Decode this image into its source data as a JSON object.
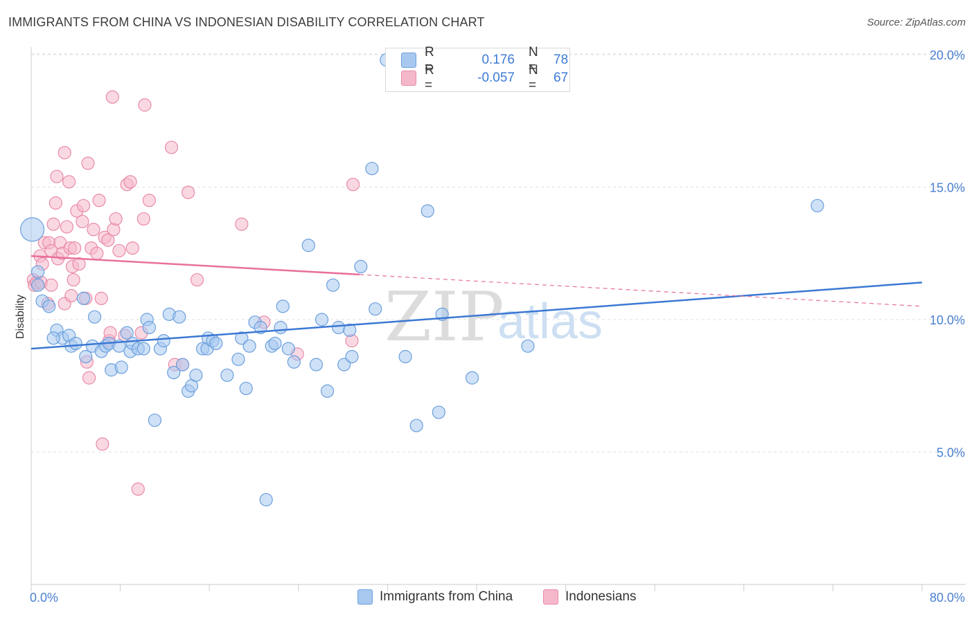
{
  "title": "IMMIGRANTS FROM CHINA VS INDONESIAN DISABILITY CORRELATION CHART",
  "source": "Source: ZipAtlas.com",
  "watermark": {
    "zip": "ZIP",
    "atlas": "atlas"
  },
  "legend": {
    "r_label": "R =",
    "n_label": "N =",
    "rows": [
      {
        "r": "0.176",
        "n": "78",
        "color": "#a8c8f0"
      },
      {
        "r": "-0.057",
        "n": "67",
        "color": "#f5b8cb"
      }
    ]
  },
  "colors": {
    "blue_fill": "#a8c8f0",
    "blue_stroke": "#6a9fdc",
    "blue_line": "#3b78d4",
    "pink_fill": "#f5b8cb",
    "pink_stroke": "#e88aa8",
    "pink_line": "#e8709a",
    "grid": "#e0e0e0",
    "tick_label": "#4a7fd0"
  },
  "chart_data": {
    "type": "scatter",
    "title": "IMMIGRANTS FROM CHINA VS INDONESIAN DISABILITY CORRELATION CHART",
    "xlabel": "",
    "ylabel": "Disability",
    "xlim": [
      0,
      80
    ],
    "ylim": [
      0,
      21.5
    ],
    "x_tick_labels": [
      "0.0%",
      "80.0%"
    ],
    "y_ticks": [
      5,
      10,
      15,
      20
    ],
    "y_tick_labels": [
      "5.0%",
      "10.0%",
      "15.0%",
      "20.0%"
    ],
    "grid": true,
    "legend_position": "bottom-center",
    "series": [
      {
        "name": "Immigrants from China",
        "R": 0.176,
        "N": 78,
        "trend": {
          "x": [
            0,
            80
          ],
          "y": [
            8.9,
            11.4
          ]
        },
        "points": [
          [
            0.1,
            13.4
          ],
          [
            0.6,
            11.8
          ],
          [
            0.6,
            11.3
          ],
          [
            1.0,
            10.7
          ],
          [
            1.6,
            10.5
          ],
          [
            2.3,
            9.6
          ],
          [
            2.8,
            9.3
          ],
          [
            3.4,
            9.4
          ],
          [
            3.6,
            9.0
          ],
          [
            4.0,
            9.1
          ],
          [
            4.7,
            10.8
          ],
          [
            4.9,
            8.6
          ],
          [
            5.7,
            10.1
          ],
          [
            5.5,
            9.0
          ],
          [
            6.3,
            8.8
          ],
          [
            6.7,
            9.0
          ],
          [
            7.0,
            9.1
          ],
          [
            7.2,
            8.1
          ],
          [
            7.9,
            9.0
          ],
          [
            8.1,
            8.2
          ],
          [
            8.6,
            9.5
          ],
          [
            8.9,
            8.8
          ],
          [
            9.1,
            9.1
          ],
          [
            9.6,
            8.9
          ],
          [
            10.1,
            8.9
          ],
          [
            10.4,
            10.0
          ],
          [
            10.6,
            9.7
          ],
          [
            11.1,
            6.2
          ],
          [
            11.6,
            8.9
          ],
          [
            11.9,
            9.2
          ],
          [
            12.4,
            10.2
          ],
          [
            12.8,
            8.0
          ],
          [
            13.3,
            10.1
          ],
          [
            13.6,
            8.3
          ],
          [
            14.1,
            7.3
          ],
          [
            14.4,
            7.5
          ],
          [
            14.8,
            7.9
          ],
          [
            15.4,
            8.9
          ],
          [
            15.8,
            8.9
          ],
          [
            15.9,
            9.3
          ],
          [
            16.3,
            9.2
          ],
          [
            16.6,
            9.1
          ],
          [
            17.6,
            7.9
          ],
          [
            18.6,
            8.5
          ],
          [
            18.9,
            9.3
          ],
          [
            19.3,
            7.4
          ],
          [
            19.6,
            9.0
          ],
          [
            20.1,
            9.9
          ],
          [
            20.6,
            9.7
          ],
          [
            21.6,
            9.0
          ],
          [
            21.9,
            9.1
          ],
          [
            22.4,
            9.7
          ],
          [
            22.6,
            10.5
          ],
          [
            23.1,
            8.9
          ],
          [
            23.6,
            8.4
          ],
          [
            24.9,
            12.8
          ],
          [
            25.6,
            8.3
          ],
          [
            26.1,
            10.0
          ],
          [
            26.6,
            7.3
          ],
          [
            27.1,
            11.3
          ],
          [
            27.6,
            9.7
          ],
          [
            28.1,
            8.3
          ],
          [
            28.6,
            9.6
          ],
          [
            28.8,
            8.6
          ],
          [
            29.6,
            12.0
          ],
          [
            30.6,
            15.7
          ],
          [
            30.9,
            10.4
          ],
          [
            31.9,
            19.8
          ],
          [
            33.6,
            8.6
          ],
          [
            34.6,
            6.0
          ],
          [
            35.6,
            14.1
          ],
          [
            36.6,
            6.5
          ],
          [
            36.9,
            10.2
          ],
          [
            39.6,
            7.8
          ],
          [
            44.6,
            9.0
          ],
          [
            21.1,
            3.2
          ],
          [
            70.6,
            14.3
          ],
          [
            2.0,
            9.3
          ]
        ]
      },
      {
        "name": "Indonesians",
        "R": -0.057,
        "N": 67,
        "trend": {
          "x": [
            0,
            29.5
          ],
          "y": [
            12.4,
            11.7
          ],
          "dashed_to": {
            "x": 80,
            "y": 10.5
          }
        },
        "points": [
          [
            0.2,
            11.5
          ],
          [
            0.3,
            11.3
          ],
          [
            0.5,
            11.4
          ],
          [
            0.8,
            12.4
          ],
          [
            0.9,
            11.4
          ],
          [
            1.0,
            12.1
          ],
          [
            1.2,
            12.9
          ],
          [
            1.5,
            10.6
          ],
          [
            1.6,
            12.9
          ],
          [
            1.8,
            12.6
          ],
          [
            1.8,
            11.3
          ],
          [
            2.0,
            13.6
          ],
          [
            2.2,
            14.4
          ],
          [
            2.3,
            15.4
          ],
          [
            2.4,
            12.3
          ],
          [
            2.6,
            12.9
          ],
          [
            2.8,
            12.5
          ],
          [
            3.0,
            10.6
          ],
          [
            3.0,
            16.3
          ],
          [
            3.2,
            13.5
          ],
          [
            3.4,
            15.2
          ],
          [
            3.5,
            12.7
          ],
          [
            3.6,
            10.9
          ],
          [
            3.7,
            12.0
          ],
          [
            3.8,
            11.5
          ],
          [
            3.9,
            12.7
          ],
          [
            4.1,
            14.1
          ],
          [
            4.3,
            12.1
          ],
          [
            4.6,
            13.7
          ],
          [
            4.7,
            14.3
          ],
          [
            4.9,
            10.8
          ],
          [
            5.0,
            8.4
          ],
          [
            5.1,
            15.9
          ],
          [
            5.2,
            7.8
          ],
          [
            5.4,
            12.7
          ],
          [
            5.6,
            13.4
          ],
          [
            5.9,
            12.5
          ],
          [
            6.1,
            14.5
          ],
          [
            6.3,
            10.8
          ],
          [
            6.4,
            5.3
          ],
          [
            6.6,
            13.1
          ],
          [
            6.9,
            13.0
          ],
          [
            7.0,
            9.2
          ],
          [
            7.1,
            9.5
          ],
          [
            7.3,
            18.4
          ],
          [
            7.4,
            13.4
          ],
          [
            7.6,
            13.8
          ],
          [
            7.9,
            12.6
          ],
          [
            8.4,
            9.4
          ],
          [
            8.6,
            15.1
          ],
          [
            8.9,
            15.2
          ],
          [
            9.1,
            12.7
          ],
          [
            9.6,
            3.6
          ],
          [
            9.9,
            9.5
          ],
          [
            10.1,
            13.8
          ],
          [
            10.2,
            18.1
          ],
          [
            10.6,
            14.5
          ],
          [
            12.6,
            16.5
          ],
          [
            12.9,
            8.3
          ],
          [
            13.6,
            8.3
          ],
          [
            14.1,
            14.8
          ],
          [
            14.9,
            11.5
          ],
          [
            18.9,
            13.6
          ],
          [
            20.9,
            9.9
          ],
          [
            23.9,
            8.7
          ],
          [
            28.9,
            15.1
          ],
          [
            28.8,
            9.2
          ]
        ]
      }
    ]
  }
}
